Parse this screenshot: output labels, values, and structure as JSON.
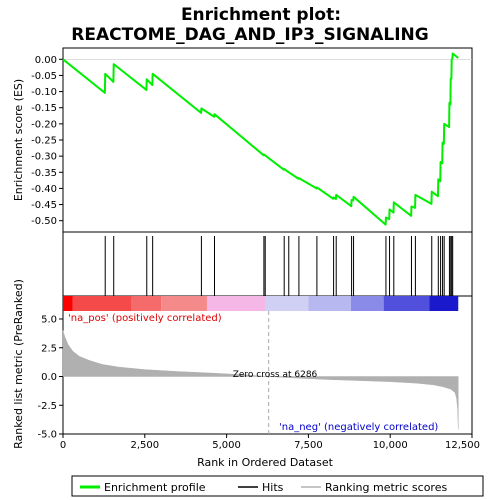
{
  "chart_data": [
    {
      "type": "line",
      "title_line1": "Enrichment plot:",
      "title_line2": "REACTOME_DAG_AND_IP3_SIGNALING",
      "ylabel": "Enrichment score (ES)",
      "ylim": [
        -0.535,
        0.035
      ],
      "xlim": [
        0,
        12500
      ],
      "yticks": [
        0.0,
        -0.05,
        -0.1,
        -0.15,
        -0.2,
        -0.25,
        -0.3,
        -0.35,
        -0.4,
        -0.45,
        -0.5
      ],
      "ytick_labels": [
        "0.00",
        "-0.05",
        "-0.10",
        "-0.15",
        "-0.20",
        "-0.25",
        "-0.30",
        "-0.35",
        "-0.40",
        "-0.45",
        "-0.50"
      ],
      "series": [
        {
          "name": "Enrichment profile",
          "color": "#00ee00",
          "points": [
            [
              0,
              0.0
            ],
            [
              1280,
              -0.104
            ],
            [
              1290,
              -0.045
            ],
            [
              1540,
              -0.07
            ],
            [
              1550,
              -0.015
            ],
            [
              2550,
              -0.095
            ],
            [
              2560,
              -0.062
            ],
            [
              2730,
              -0.08
            ],
            [
              2740,
              -0.045
            ],
            [
              4220,
              -0.166
            ],
            [
              4230,
              -0.152
            ],
            [
              4620,
              -0.178
            ],
            [
              4630,
              -0.17
            ],
            [
              6130,
              -0.297
            ],
            [
              6140,
              -0.295
            ],
            [
              6180,
              -0.298
            ],
            [
              6750,
              -0.342
            ],
            [
              6760,
              -0.34
            ],
            [
              6900,
              -0.35
            ],
            [
              7200,
              -0.37
            ],
            [
              7210,
              -0.368
            ],
            [
              7750,
              -0.4
            ],
            [
              7760,
              -0.397
            ],
            [
              8260,
              -0.432
            ],
            [
              8270,
              -0.428
            ],
            [
              8340,
              -0.433
            ],
            [
              8350,
              -0.42
            ],
            [
              8810,
              -0.455
            ],
            [
              8820,
              -0.436
            ],
            [
              8870,
              -0.437
            ],
            [
              8880,
              -0.426
            ],
            [
              9860,
              -0.512
            ],
            [
              9870,
              -0.49
            ],
            [
              9970,
              -0.495
            ],
            [
              9980,
              -0.465
            ],
            [
              10100,
              -0.475
            ],
            [
              10110,
              -0.443
            ],
            [
              10640,
              -0.485
            ],
            [
              10650,
              -0.456
            ],
            [
              10760,
              -0.46
            ],
            [
              10770,
              -0.42
            ],
            [
              11260,
              -0.448
            ],
            [
              11270,
              -0.41
            ],
            [
              11460,
              -0.424
            ],
            [
              11470,
              -0.372
            ],
            [
              11530,
              -0.378
            ],
            [
              11540,
              -0.318
            ],
            [
              11590,
              -0.322
            ],
            [
              11600,
              -0.258
            ],
            [
              11640,
              -0.262
            ],
            [
              11650,
              -0.2
            ],
            [
              11800,
              -0.21
            ],
            [
              11810,
              -0.135
            ],
            [
              11840,
              -0.14
            ],
            [
              11850,
              -0.06
            ],
            [
              11870,
              -0.06
            ],
            [
              11880,
              0.0
            ],
            [
              11900,
              0.002
            ],
            [
              11910,
              0.018
            ],
            [
              12080,
              0.004
            ]
          ]
        }
      ]
    },
    {
      "type": "line",
      "ylabel": "Ranked list metric (PreRanked)",
      "xlabel": "Rank in Ordered Dataset",
      "xlim": [
        0,
        12500
      ],
      "ylim": [
        -5,
        7
      ],
      "xticks": [
        0,
        2500,
        5000,
        7500,
        10000,
        12500
      ],
      "xtick_labels": [
        "0",
        "2,500",
        "5,000",
        "7,500",
        "10,000",
        "12,500"
      ],
      "yticks": [
        5.0,
        2.5,
        0.0,
        -2.5,
        -5.0
      ],
      "ytick_labels": [
        "5.0",
        "2.5",
        "0.0",
        "-2.5",
        "-5.0"
      ],
      "zero_cross_rank": 6286,
      "series": [
        {
          "name": "Ranking metric scores",
          "color": "#b0b0b0",
          "points": [
            [
              0,
              4.0
            ],
            [
              50,
              3.5
            ],
            [
              150,
              2.8
            ],
            [
              300,
              2.2
            ],
            [
              500,
              1.75
            ],
            [
              800,
              1.4
            ],
            [
              1200,
              1.05
            ],
            [
              1700,
              0.82
            ],
            [
              2500,
              0.6
            ],
            [
              3500,
              0.43
            ],
            [
              4500,
              0.3
            ],
            [
              5500,
              0.15
            ],
            [
              6286,
              0.0
            ],
            [
              7000,
              -0.12
            ],
            [
              8000,
              -0.25
            ],
            [
              9000,
              -0.35
            ],
            [
              10000,
              -0.45
            ],
            [
              10800,
              -0.58
            ],
            [
              11300,
              -0.72
            ],
            [
              11600,
              -0.88
            ],
            [
              11850,
              -1.1
            ],
            [
              11980,
              -1.4
            ],
            [
              12030,
              -1.9
            ],
            [
              12060,
              -2.8
            ],
            [
              12080,
              -4.6
            ]
          ]
        }
      ],
      "annotations": {
        "zero_cross": "Zero cross at 6286",
        "pos_label": "'na_pos' (positively correlated)",
        "neg_label": "'na_neg' (negatively correlated)"
      }
    }
  ],
  "hits": {
    "name": "Hits",
    "color": "#000000",
    "ranks": [
      1290,
      1550,
      2560,
      2740,
      4230,
      4630,
      6140,
      6180,
      6760,
      6900,
      7210,
      7760,
      8270,
      8350,
      8820,
      8880,
      9870,
      9980,
      10110,
      10650,
      10770,
      11270,
      11470,
      11540,
      11600,
      11650,
      11810,
      11850,
      11880,
      11910
    ]
  },
  "rank_bar": {
    "segments": [
      {
        "end": 300,
        "color": "#ff0000"
      },
      {
        "end": 2100,
        "color": "#f54a4a"
      },
      {
        "end": 3000,
        "color": "#f56a6a"
      },
      {
        "end": 4400,
        "color": "#f58a8a"
      },
      {
        "end": 6200,
        "color": "#f5b8e6"
      },
      {
        "end": 7500,
        "color": "#d0d0f5"
      },
      {
        "end": 8800,
        "color": "#b8b8f0"
      },
      {
        "end": 9800,
        "color": "#8a8ae8"
      },
      {
        "end": 11200,
        "color": "#5050dd"
      },
      {
        "end": 12080,
        "color": "#1a1acc"
      }
    ]
  },
  "legend": {
    "items": [
      {
        "label": "Enrichment profile",
        "color": "#00ee00"
      },
      {
        "label": "Hits",
        "color": "#000000"
      },
      {
        "label": "Ranking metric scores",
        "color": "#b0b0b0"
      }
    ]
  },
  "colors": {
    "pos_label": "#dd0000",
    "neg_label": "#0000cc",
    "zero_line": "#aaaaaa"
  }
}
